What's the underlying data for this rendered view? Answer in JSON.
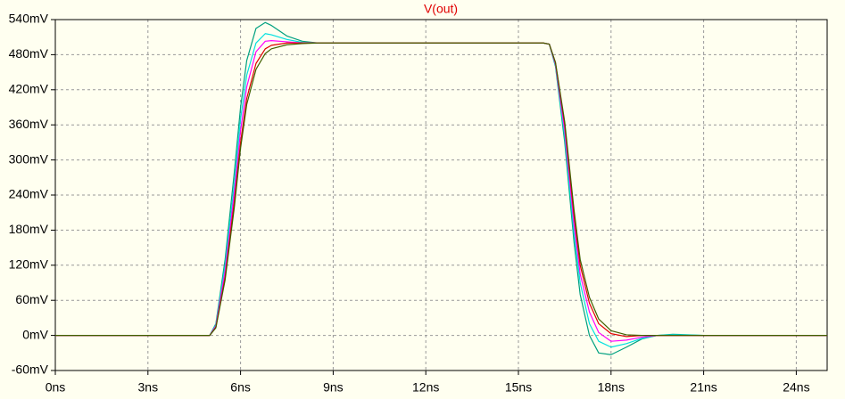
{
  "chart_data": {
    "type": "line",
    "title": "V(out)",
    "title_color": "#e00000",
    "x": [
      0,
      5,
      5.2,
      5.5,
      5.8,
      6,
      6.2,
      6.5,
      6.8,
      7,
      7.5,
      8,
      8.5,
      9,
      12,
      15,
      15.8,
      16,
      16.2,
      16.5,
      16.8,
      17,
      17.3,
      17.6,
      18,
      18.5,
      19,
      19.5,
      20,
      21,
      25
    ],
    "series": [
      {
        "color": "#00a080",
        "values": [
          0,
          0,
          20,
          130,
          280,
          390,
          470,
          525,
          535,
          530,
          512,
          503,
          500,
          500,
          500,
          500,
          500,
          498,
          460,
          330,
          160,
          70,
          0,
          -30,
          -33,
          -20,
          -6,
          0,
          2,
          0,
          0
        ]
      },
      {
        "color": "#00e0e0",
        "values": [
          0,
          0,
          18,
          120,
          260,
          370,
          445,
          500,
          516,
          514,
          506,
          501,
          500,
          500,
          500,
          500,
          500,
          498,
          462,
          340,
          175,
          90,
          20,
          -10,
          -20,
          -14,
          -5,
          0,
          1,
          0,
          0
        ]
      },
      {
        "color": "#ff00ff",
        "values": [
          0,
          0,
          16,
          110,
          245,
          350,
          425,
          485,
          503,
          504,
          502,
          500,
          500,
          500,
          500,
          500,
          500,
          498,
          464,
          350,
          190,
          105,
          40,
          5,
          -10,
          -8,
          -3,
          0,
          0,
          0,
          0
        ]
      },
      {
        "color": "#e00000",
        "values": [
          0,
          0,
          14,
          100,
          230,
          330,
          405,
          465,
          490,
          496,
          500,
          500,
          500,
          500,
          500,
          500,
          500,
          498,
          466,
          360,
          205,
          120,
          55,
          20,
          3,
          -2,
          0,
          0,
          0,
          0,
          0
        ]
      },
      {
        "color": "#406000",
        "values": [
          0,
          0,
          13,
          95,
          220,
          320,
          395,
          455,
          482,
          490,
          497,
          499,
          500,
          500,
          500,
          500,
          500,
          498,
          467,
          365,
          215,
          130,
          65,
          28,
          8,
          1,
          0,
          0,
          0,
          0,
          0
        ]
      }
    ],
    "xlim": [
      0,
      25
    ],
    "xticks": [
      {
        "value": 0,
        "label": "0ns"
      },
      {
        "value": 3,
        "label": "3ns"
      },
      {
        "value": 6,
        "label": "6ns"
      },
      {
        "value": 9,
        "label": "9ns"
      },
      {
        "value": 12,
        "label": "12ns"
      },
      {
        "value": 15,
        "label": "15ns"
      },
      {
        "value": 18,
        "label": "18ns"
      },
      {
        "value": 21,
        "label": "21ns"
      },
      {
        "value": 24,
        "label": "24ns"
      }
    ],
    "ylim": [
      -60,
      540
    ],
    "yticks": [
      {
        "value": -60,
        "label": "-60mV"
      },
      {
        "value": 0,
        "label": "0mV"
      },
      {
        "value": 60,
        "label": "60mV"
      },
      {
        "value": 120,
        "label": "120mV"
      },
      {
        "value": 180,
        "label": "180mV"
      },
      {
        "value": 240,
        "label": "240mV"
      },
      {
        "value": 300,
        "label": "300mV"
      },
      {
        "value": 360,
        "label": "360mV"
      },
      {
        "value": 420,
        "label": "420mV"
      },
      {
        "value": 480,
        "label": "480mV"
      },
      {
        "value": 540,
        "label": "540mV"
      }
    ],
    "grid": true
  }
}
